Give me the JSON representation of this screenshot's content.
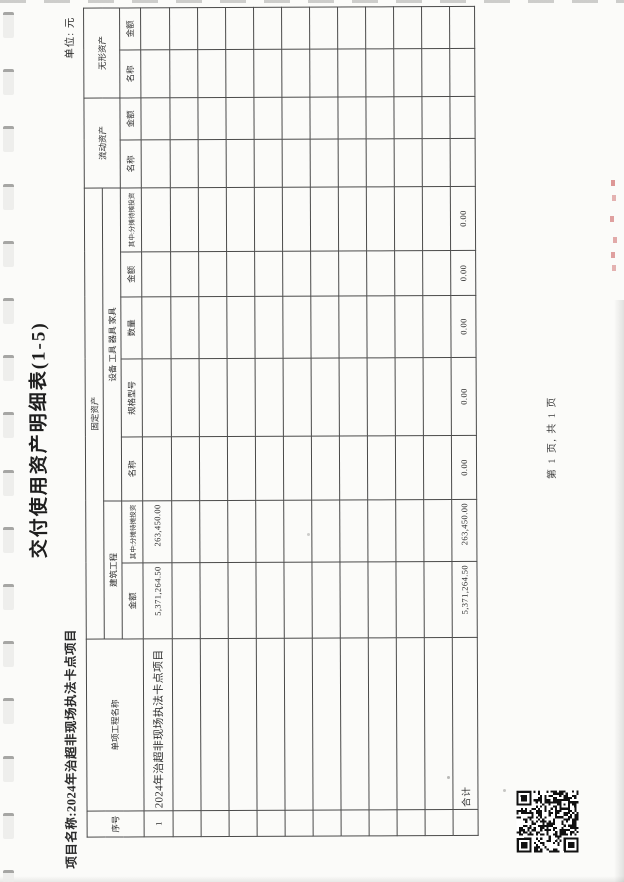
{
  "page": {
    "title": "交付使用资产明细表(1-5)",
    "project_label": "项目名称:2024年治超非现场执法卡点项目",
    "unit_label": "单位: 元",
    "footer": "第 1 页, 共 1 页"
  },
  "table": {
    "headers": {
      "seq": "序号",
      "project": "单项工程名称",
      "fixed_assets": "固定资产",
      "construction": "建筑工程",
      "equipment": "设备 工具 器具 家具",
      "current_assets": "流动资产",
      "intangible_assets": "无形资产",
      "construction_amount": "金额",
      "construction_share": "其中:分摊待摊投资",
      "equip_name": "名称",
      "equip_spec": "规格型号",
      "equip_qty": "数量",
      "equip_amount": "金额",
      "equip_share": "其中:分摊待摊投资",
      "current_name": "名称",
      "current_amount": "金额",
      "intangible_name": "名称",
      "intangible_amount": "金额"
    },
    "row1": {
      "seq": "1",
      "project": "2024年治超非现场执法卡点项目",
      "jz_amount": "5,371,264.50",
      "jz_share": "263,450.00"
    },
    "empty_row_count": 10,
    "total": {
      "label": "合计",
      "jz_amount": "5,371,264.50",
      "jz_share": "263,450.00",
      "eq_name": "0.00",
      "eq_spec": "0.00",
      "eq_qty": "0.00",
      "eq_amount": "0.00",
      "eq_share": "0.00"
    }
  },
  "colors": {
    "paper": "#fbfbf9",
    "table_line": "#4a4a4a",
    "text": "#2b2b2b",
    "qr": "#111111",
    "red_mark": "#c04646"
  }
}
